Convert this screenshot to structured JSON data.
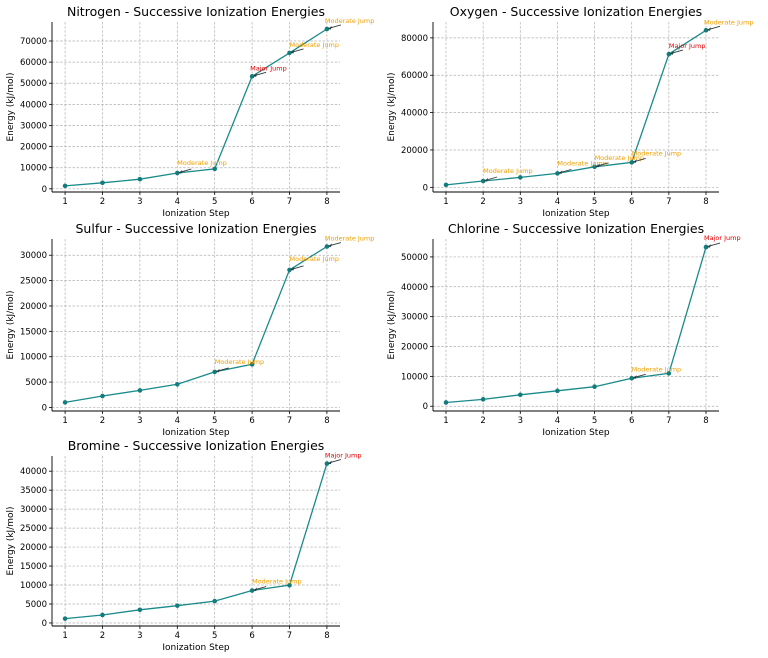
{
  "chart_data": [
    {
      "type": "line",
      "title": "Nitrogen - Successive Ionization Energies",
      "xlabel": "Ionization Step",
      "ylabel": "Energy (kJ/mol)",
      "x": [
        1,
        2,
        3,
        4,
        5,
        6,
        7,
        8
      ],
      "values": [
        1402,
        2856,
        4578,
        7475,
        9445,
        53267,
        64360,
        75700
      ],
      "ylim": [
        -1500,
        79000
      ],
      "yticks": [
        0,
        10000,
        20000,
        30000,
        40000,
        50000,
        60000,
        70000
      ],
      "grid": true,
      "annotations": [
        {
          "step": 4,
          "text": "Moderate Jump",
          "color": "#f0a000"
        },
        {
          "step": 6,
          "text": "Major Jump",
          "color": "#e00000"
        },
        {
          "step": 7,
          "text": "Moderate Jump",
          "color": "#f0a000"
        },
        {
          "step": 8,
          "text": "Moderate Jump",
          "color": "#f0a000"
        }
      ]
    },
    {
      "type": "line",
      "title": "Oxygen - Successive Ionization Energies",
      "xlabel": "Ionization Step",
      "ylabel": "Energy (kJ/mol)",
      "x": [
        1,
        2,
        3,
        4,
        5,
        6,
        7,
        8
      ],
      "values": [
        1314,
        3388,
        5300,
        7469,
        10989,
        13326,
        71330,
        84078
      ],
      "ylim": [
        -2500,
        88500
      ],
      "yticks": [
        0,
        20000,
        40000,
        60000,
        80000
      ],
      "grid": true,
      "annotations": [
        {
          "step": 2,
          "text": "Moderate Jump",
          "color": "#f0a000"
        },
        {
          "step": 4,
          "text": "Moderate Jump",
          "color": "#f0a000"
        },
        {
          "step": 5,
          "text": "Moderate Jump",
          "color": "#f0a000"
        },
        {
          "step": 6,
          "text": "Moderate Jump",
          "color": "#f0a000"
        },
        {
          "step": 7,
          "text": "Major Jump",
          "color": "#e00000"
        },
        {
          "step": 8,
          "text": "Moderate Jump",
          "color": "#f0a000"
        }
      ]
    },
    {
      "type": "line",
      "title": "Sulfur - Successive Ionization Energies",
      "xlabel": "Ionization Step",
      "ylabel": "Energy (kJ/mol)",
      "x": [
        1,
        2,
        3,
        4,
        5,
        6,
        7,
        8
      ],
      "values": [
        1000,
        2252,
        3357,
        4556,
        7004,
        8496,
        27107,
        31719
      ],
      "ylim": [
        -700,
        33200
      ],
      "yticks": [
        0,
        5000,
        10000,
        15000,
        20000,
        25000,
        30000
      ],
      "grid": true,
      "annotations": [
        {
          "step": 5,
          "text": "Moderate Jump",
          "color": "#f0a000"
        },
        {
          "step": 7,
          "text": "Moderate Jump",
          "color": "#f0a000"
        },
        {
          "step": 8,
          "text": "Moderate Jump",
          "color": "#f0a000"
        }
      ]
    },
    {
      "type": "line",
      "title": "Chlorine - Successive Ionization Energies",
      "xlabel": "Ionization Step",
      "ylabel": "Energy (kJ/mol)",
      "x": [
        1,
        2,
        3,
        4,
        5,
        6,
        7,
        8
      ],
      "values": [
        1251,
        2298,
        3822,
        5158,
        6542,
        9362,
        11018,
        53300
      ],
      "ylim": [
        -1600,
        56000
      ],
      "yticks": [
        0,
        10000,
        20000,
        30000,
        40000,
        50000
      ],
      "grid": true,
      "annotations": [
        {
          "step": 6,
          "text": "Moderate Jump",
          "color": "#f0a000"
        },
        {
          "step": 8,
          "text": "Major Jump",
          "color": "#e00000"
        }
      ]
    },
    {
      "type": "line",
      "title": "Bromine - Successive Ionization Energies",
      "xlabel": "Ionization Step",
      "ylabel": "Energy (kJ/mol)",
      "x": [
        1,
        2,
        3,
        4,
        5,
        6,
        7,
        8
      ],
      "values": [
        1140,
        2103,
        3470,
        4560,
        5760,
        8550,
        9940,
        42000
      ],
      "ylim": [
        -800,
        44000
      ],
      "yticks": [
        0,
        5000,
        10000,
        15000,
        20000,
        25000,
        30000,
        35000,
        40000
      ],
      "grid": true,
      "annotations": [
        {
          "step": 6,
          "text": "Moderate Jump",
          "color": "#f0a000"
        },
        {
          "step": 8,
          "text": "Major Jump",
          "color": "#e00000"
        }
      ]
    }
  ]
}
